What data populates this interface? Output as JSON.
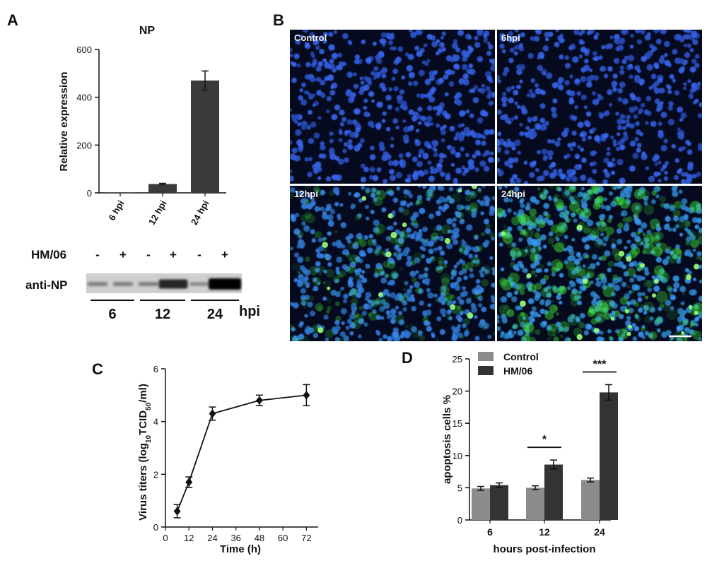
{
  "figure": {
    "panel_a": {
      "letter": "A",
      "blot": {
        "row_label": "HM/06",
        "lane_signs": [
          "-",
          "+",
          "-",
          "+",
          "-",
          "+"
        ],
        "band_label": "anti-NP",
        "group_labels": [
          "6",
          "12",
          "24"
        ],
        "unit": "hpi",
        "band_intensity": [
          0.15,
          0.15,
          0.15,
          0.75,
          0.1,
          1.0
        ]
      }
    },
    "panel_b": {
      "letter": "B",
      "images": [
        {
          "label": "Control",
          "green_level": 0.0
        },
        {
          "label": "6hpi",
          "green_level": 0.0
        },
        {
          "label": "12hpi",
          "green_level": 0.55
        },
        {
          "label": "24hpi",
          "green_level": 0.85
        }
      ],
      "colors": {
        "nucleus": "#2a50d8",
        "background": "#050a1e",
        "np_signal": "#3fe23a"
      }
    },
    "panel_c": {
      "letter": "C"
    },
    "panel_d": {
      "letter": "D"
    }
  },
  "chart_data": [
    {
      "id": "A",
      "type": "bar",
      "title": "NP",
      "categories": [
        "6 hpi",
        "12 hpi",
        "24 hpi"
      ],
      "values": [
        1,
        37,
        470
      ],
      "errors": [
        0,
        3,
        40
      ],
      "ylabel": "Relative expression",
      "xlabel": "",
      "ylim": [
        0,
        600
      ],
      "yticks": [
        0,
        200,
        400,
        600
      ],
      "color": "#3a3a3a"
    },
    {
      "id": "C",
      "type": "line",
      "x": [
        6,
        12,
        24,
        48,
        72
      ],
      "y": [
        0.6,
        1.7,
        4.3,
        4.8,
        5.0
      ],
      "errors": [
        0.25,
        0.2,
        0.25,
        0.2,
        0.4
      ],
      "xlabel": "Time (h)",
      "ylabel_parts": [
        "Virus titers (log",
        "10",
        "TCID",
        "50",
        "/ml)"
      ],
      "xlim": [
        0,
        78
      ],
      "ylim": [
        0,
        6
      ],
      "xticks": [
        0,
        12,
        24,
        36,
        48,
        60,
        72
      ],
      "yticks": [
        0,
        2,
        4,
        6
      ],
      "color": "#111111"
    },
    {
      "id": "D",
      "type": "bar",
      "categories": [
        "6",
        "12",
        "24"
      ],
      "series": [
        {
          "name": "Control",
          "values": [
            4.9,
            5.0,
            6.2
          ],
          "errors": [
            0.3,
            0.3,
            0.3
          ],
          "color": "#8c8c8c"
        },
        {
          "name": "HM/06",
          "values": [
            5.4,
            8.6,
            19.8
          ],
          "errors": [
            0.35,
            0.7,
            1.2
          ],
          "color": "#333333"
        }
      ],
      "significance": [
        {
          "category": "12",
          "label": "*"
        },
        {
          "category": "24",
          "label": "***"
        }
      ],
      "xlabel": "hours post-infection",
      "ylabel": "apoptosis cells %",
      "ylim": [
        0,
        25
      ],
      "yticks": [
        0,
        5,
        10,
        15,
        20,
        25
      ],
      "legend": "top-left"
    }
  ]
}
